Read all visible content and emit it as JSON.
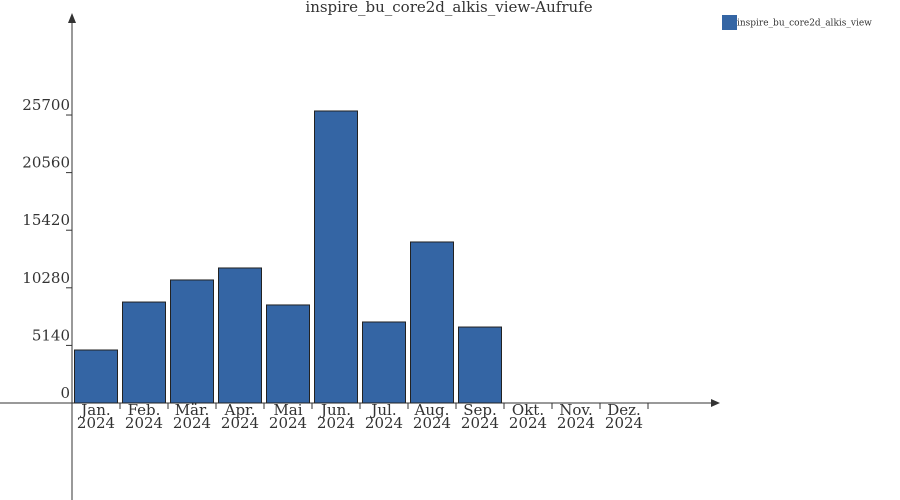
{
  "chart_data": {
    "type": "bar",
    "title": "inspire_bu_core2d_alkis_view-Aufrufe",
    "categories": [
      [
        "Jan.",
        "2024"
      ],
      [
        "Feb.",
        "2024"
      ],
      [
        "Mär.",
        "2024"
      ],
      [
        "Apr.",
        "2024"
      ],
      [
        "Mai",
        "2024"
      ],
      [
        "Jun.",
        "2024"
      ],
      [
        "Jul.",
        "2024"
      ],
      [
        "Aug.",
        "2024"
      ],
      [
        "Sep.",
        "2024"
      ],
      [
        "Okt.",
        "2024"
      ],
      [
        "Nov.",
        "2024"
      ],
      [
        "Dez.",
        "2024"
      ]
    ],
    "series": [
      {
        "name": "inspire_bu_core2d_alkis_view",
        "color": "#3465a4",
        "values": [
          4730,
          9010,
          10980,
          12050,
          8750,
          26060,
          7230,
          14370,
          6780,
          0,
          0,
          0
        ]
      }
    ],
    "ylim": [
      -8656,
      34447
    ],
    "yticks": [
      0,
      5140,
      10280,
      15420,
      20560,
      25700
    ]
  }
}
